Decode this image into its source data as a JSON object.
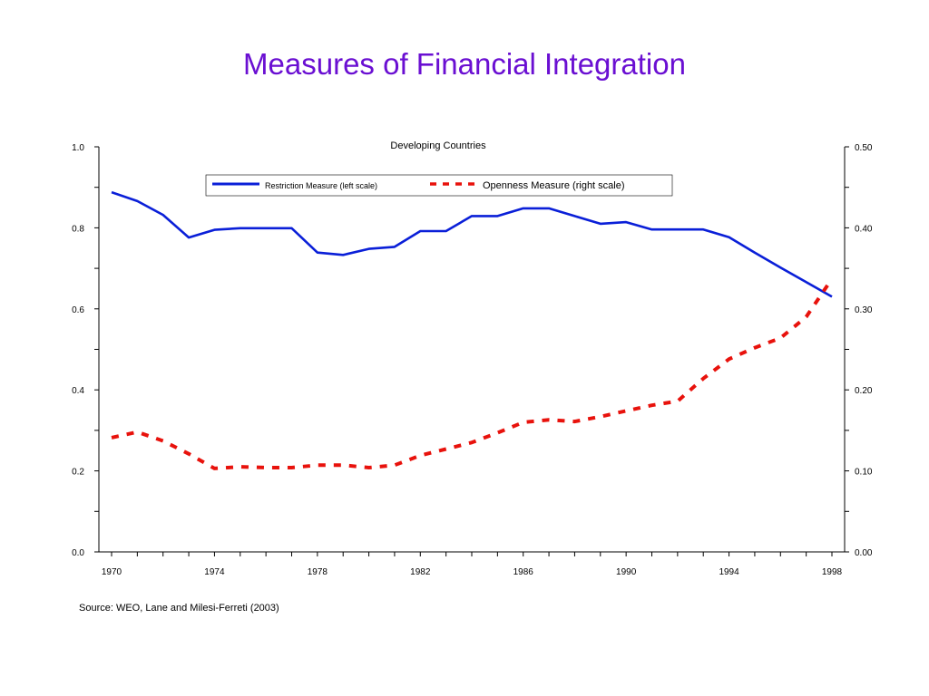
{
  "page_title": "Measures of Financial Integration",
  "source_note": "Source: WEO, Lane and Milesi-Ferreti (2003)",
  "chart_data": {
    "type": "line",
    "title": "Developing Countries",
    "xlim": [
      1970,
      1998
    ],
    "x_ticks": [
      1970,
      1974,
      1978,
      1982,
      1986,
      1990,
      1994,
      1998
    ],
    "left_axis": {
      "ylim": [
        0.0,
        1.0
      ],
      "ticks": [
        0.0,
        0.2,
        0.4,
        0.6,
        0.8,
        1.0
      ],
      "tick_labels": [
        "0.0",
        "0.2",
        "0.4",
        "0.6",
        "0.8",
        "1.0"
      ]
    },
    "right_axis": {
      "ylim": [
        0.0,
        0.5
      ],
      "ticks": [
        0.0,
        0.1,
        0.2,
        0.3,
        0.4,
        0.5
      ],
      "tick_labels": [
        "0.00",
        "0.10",
        "0.20",
        "0.30",
        "0.40",
        "0.50"
      ]
    },
    "legend_position": "top",
    "grid": false,
    "x": [
      1970,
      1971,
      1972,
      1973,
      1974,
      1975,
      1976,
      1977,
      1978,
      1979,
      1980,
      1981,
      1982,
      1983,
      1984,
      1985,
      1986,
      1987,
      1988,
      1989,
      1990,
      1991,
      1992,
      1993,
      1994,
      1995,
      1996,
      1997,
      1998
    ],
    "series": [
      {
        "name": "Restriction Measure (left scale)",
        "axis": "left",
        "color": "#0a1fd8",
        "style": "solid",
        "values": [
          0.888,
          0.866,
          0.832,
          0.776,
          0.795,
          0.799,
          0.799,
          0.799,
          0.739,
          0.733,
          0.748,
          0.753,
          0.792,
          0.792,
          0.829,
          0.829,
          0.848,
          0.848,
          0.829,
          0.81,
          0.814,
          0.796,
          0.796,
          0.796,
          0.777,
          0.739,
          0.702,
          0.666,
          0.63
        ]
      },
      {
        "name": "Openness Measure (right scale)",
        "axis": "right",
        "color": "#e8120c",
        "style": "dashed",
        "values": [
          0.141,
          0.148,
          0.137,
          0.121,
          0.103,
          0.105,
          0.104,
          0.104,
          0.107,
          0.107,
          0.104,
          0.107,
          0.119,
          0.127,
          0.135,
          0.147,
          0.16,
          0.163,
          0.161,
          0.167,
          0.174,
          0.181,
          0.186,
          0.214,
          0.238,
          0.252,
          0.264,
          0.29,
          0.337
        ]
      }
    ]
  }
}
